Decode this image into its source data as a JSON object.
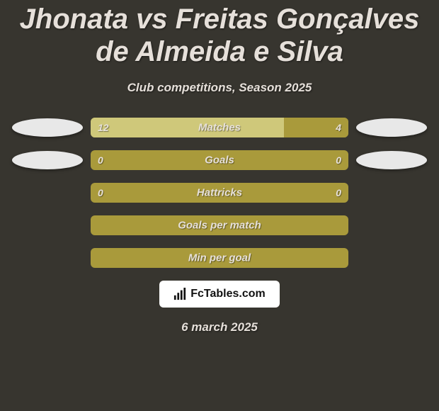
{
  "colors": {
    "background": "#37352f",
    "title": "#e6e0da",
    "text_light": "#e6e0da",
    "bar_base": "#a99a3b",
    "bar_alt": "#cfc87a",
    "avatar": "#e8e8e8",
    "logo_bg": "#ffffff"
  },
  "typography": {
    "title_fontsize": 40,
    "subtitle_fontsize": 17,
    "bar_label_fontsize": 15,
    "bar_value_fontsize": 14,
    "date_fontsize": 17,
    "logo_fontsize": 16
  },
  "title": "Jhonata vs Freitas Gonçalves de Almeida e Silva",
  "subtitle": "Club competitions, Season 2025",
  "rows": [
    {
      "label": "Matches",
      "left": "12",
      "right": "4",
      "left_pct": 75,
      "show_avatars": true
    },
    {
      "label": "Goals",
      "left": "0",
      "right": "0",
      "left_pct": 0,
      "show_avatars": true
    },
    {
      "label": "Hattricks",
      "left": "0",
      "right": "0",
      "left_pct": 0,
      "show_avatars": false
    },
    {
      "label": "Goals per match",
      "left": "",
      "right": "",
      "left_pct": 0,
      "show_avatars": false
    },
    {
      "label": "Min per goal",
      "left": "",
      "right": "",
      "left_pct": 0,
      "show_avatars": false
    }
  ],
  "logo_text": "FcTables.com",
  "date": "6 march 2025"
}
